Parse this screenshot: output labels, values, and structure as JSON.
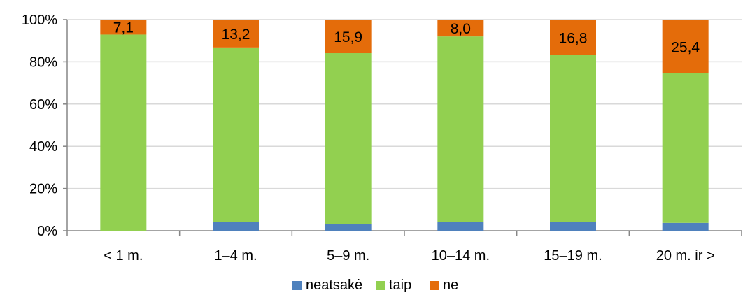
{
  "chart_data": {
    "type": "bar",
    "stacked": true,
    "percent_stacked": true,
    "categories": [
      "< 1 m.",
      "1–4 m.",
      "5–9 m.",
      "10–14 m.",
      "15–19 m.",
      "20 m. ir >"
    ],
    "series": [
      {
        "name": "neatsakė",
        "color": "#4f81bd",
        "values": [
          0,
          4.0,
          3.2,
          4.0,
          4.3,
          3.7
        ]
      },
      {
        "name": "taip",
        "color": "#92d050",
        "values": [
          92.9,
          82.8,
          80.9,
          88.0,
          78.9,
          70.9
        ]
      },
      {
        "name": "ne",
        "color": "#e46c0a",
        "values": [
          7.1,
          13.2,
          15.9,
          8.0,
          16.8,
          25.4
        ]
      }
    ],
    "data_labels": [
      "7,1",
      "13,2",
      "15,9",
      "8,0",
      "16,8",
      "25,4"
    ],
    "y_ticks": [
      "0%",
      "20%",
      "40%",
      "60%",
      "80%",
      "100%"
    ],
    "ylim": [
      0,
      100
    ],
    "grid": true,
    "legend_position": "bottom"
  }
}
